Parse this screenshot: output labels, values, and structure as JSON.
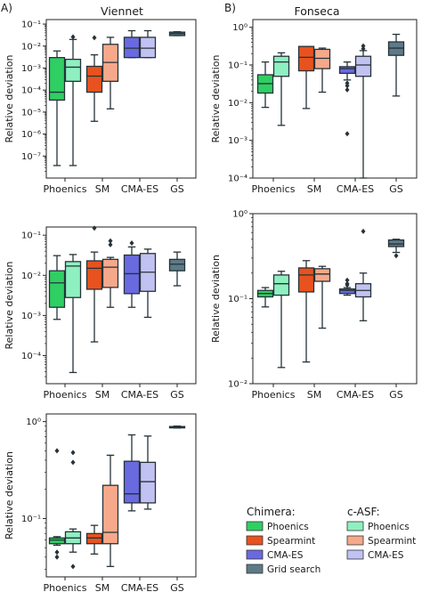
{
  "figure": {
    "panel_labels": [
      "A)",
      "B)"
    ],
    "column_titles": [
      "Viennet",
      "Fonseca"
    ],
    "ylabel": "Relative deviation",
    "categories": [
      "Phoenics",
      "SM",
      "CMA-ES",
      "GS"
    ]
  },
  "legend": {
    "chimera_title": "Chimera:",
    "casf_title": "c-ASF:",
    "chimera": [
      {
        "label": "Phoenics",
        "color": "#2fcf63"
      },
      {
        "label": "Spearmint",
        "color": "#e8521e"
      },
      {
        "label": "CMA-ES",
        "color": "#6a6ae0"
      },
      {
        "label": "Grid search",
        "color": "#5d7a87"
      }
    ],
    "casf": [
      {
        "label": "Phoenics",
        "color": "#8ef0c0"
      },
      {
        "label": "Spearmint",
        "color": "#f6a98a"
      },
      {
        "label": "CMA-ES",
        "color": "#c2c2f2"
      }
    ]
  },
  "chart_data": [
    {
      "type": "box",
      "panel": "A",
      "title": "Viennet",
      "ylabel": "Relative deviation",
      "yscale": "log",
      "ylim": [
        1e-08,
        0.16
      ],
      "yticks": [
        1e-07,
        1e-06,
        1e-05,
        0.0001,
        0.001,
        0.01,
        0.1
      ],
      "ytick_labels": [
        "10⁻⁷",
        "10⁻⁶",
        "10⁻⁵",
        "10⁻⁴",
        "10⁻³",
        "10⁻²",
        "10⁻¹"
      ],
      "categories": [
        "Phoenics",
        "SM",
        "CMA-ES",
        "GS"
      ],
      "boxes": [
        {
          "category": "Phoenics",
          "method": "Chimera",
          "color": "#2fcf63",
          "whislo": 3.7e-08,
          "q1": 3.5e-05,
          "med": 8e-05,
          "q3": 0.003,
          "whishi": 0.006,
          "fliers": []
        },
        {
          "category": "Phoenics",
          "method": "c-ASF",
          "color": "#8ef0c0",
          "whislo": 3.7e-08,
          "q1": 0.00025,
          "med": 0.0011,
          "q3": 0.0025,
          "whishi": 0.02,
          "fliers": [
            0.026
          ]
        },
        {
          "category": "SM",
          "method": "Chimera",
          "color": "#e8521e",
          "whislo": 3.8e-06,
          "q1": 8e-05,
          "med": 0.00043,
          "q3": 0.0012,
          "whishi": 0.004,
          "fliers": [
            0.024
          ]
        },
        {
          "category": "SM",
          "method": "c-ASF",
          "color": "#f6a98a",
          "whislo": 1.4e-05,
          "q1": 0.00025,
          "med": 0.0018,
          "q3": 0.012,
          "whishi": 0.025,
          "fliers": []
        },
        {
          "category": "CMA-ES",
          "method": "Chimera",
          "color": "#6a6ae0",
          "whislo": 0.003,
          "q1": 0.003,
          "med": 0.008,
          "q3": 0.025,
          "whishi": 0.05,
          "fliers": []
        },
        {
          "category": "CMA-ES",
          "method": "c-ASF",
          "color": "#c2c2f2",
          "whislo": 0.003,
          "q1": 0.003,
          "med": 0.008,
          "q3": 0.025,
          "whishi": 0.05,
          "fliers": []
        },
        {
          "category": "GS",
          "method": "Chimera",
          "color": "#5d7a87",
          "whislo": 0.03,
          "q1": 0.03,
          "med": 0.037,
          "q3": 0.043,
          "whishi": 0.045,
          "fliers": []
        }
      ]
    },
    {
      "type": "box",
      "panel": "B",
      "title": "Fonseca",
      "ylabel": "Relative deviation",
      "yscale": "log",
      "ylim": [
        0.0001,
        1.6
      ],
      "yticks": [
        0.0001,
        0.001,
        0.01,
        0.1,
        1
      ],
      "ytick_labels": [
        "10⁻⁴",
        "10⁻³",
        "10⁻²",
        "10⁻¹",
        "10⁰"
      ],
      "categories": [
        "Phoenics",
        "SM",
        "CMA-ES",
        "GS"
      ],
      "boxes": [
        {
          "category": "Phoenics",
          "method": "Chimera",
          "color": "#2fcf63",
          "whislo": 0.0075,
          "q1": 0.018,
          "med": 0.032,
          "q3": 0.055,
          "whishi": 0.12,
          "fliers": []
        },
        {
          "category": "Phoenics",
          "method": "c-ASF",
          "color": "#8ef0c0",
          "whislo": 0.0025,
          "q1": 0.05,
          "med": 0.12,
          "q3": 0.17,
          "whishi": 0.21,
          "fliers": []
        },
        {
          "category": "SM",
          "method": "Chimera",
          "color": "#e8521e",
          "whislo": 0.007,
          "q1": 0.07,
          "med": 0.16,
          "q3": 0.31,
          "whishi": 0.31,
          "fliers": []
        },
        {
          "category": "SM",
          "method": "c-ASF",
          "color": "#f6a98a",
          "whislo": 0.019,
          "q1": 0.08,
          "med": 0.15,
          "q3": 0.26,
          "whishi": 0.28,
          "fliers": []
        },
        {
          "category": "CMA-ES",
          "method": "Chimera",
          "color": "#6a6ae0",
          "whislo": 0.04,
          "q1": 0.06,
          "med": 0.08,
          "q3": 0.09,
          "whishi": 0.12,
          "fliers": [
            0.033,
            0.028,
            0.022,
            0.0015
          ]
        },
        {
          "category": "CMA-ES",
          "method": "c-ASF",
          "color": "#c2c2f2",
          "whislo": 0.0001,
          "q1": 0.05,
          "med": 0.1,
          "q3": 0.17,
          "whishi": 0.24,
          "fliers": [
            0.32,
            0.27
          ]
        },
        {
          "category": "GS",
          "method": "Chimera",
          "color": "#5d7a87",
          "whislo": 0.015,
          "q1": 0.18,
          "med": 0.28,
          "q3": 0.41,
          "whishi": 0.65,
          "fliers": []
        }
      ]
    },
    {
      "type": "box",
      "panel": "A",
      "ylabel": "Relative deviation",
      "yscale": "log",
      "ylim": [
        2e-05,
        0.16
      ],
      "yticks": [
        0.0001,
        0.001,
        0.01,
        0.1
      ],
      "ytick_labels": [
        "10⁻⁴",
        "10⁻³",
        "10⁻²",
        "10⁻¹"
      ],
      "categories": [
        "Phoenics",
        "SM",
        "CMA-ES",
        "GS"
      ],
      "boxes": [
        {
          "category": "Phoenics",
          "method": "Chimera",
          "color": "#2fcf63",
          "whislo": 0.0008,
          "q1": 0.0016,
          "med": 0.0065,
          "q3": 0.013,
          "whishi": 0.031,
          "fliers": []
        },
        {
          "category": "Phoenics",
          "method": "c-ASF",
          "color": "#8ef0c0",
          "whislo": 3.8e-05,
          "q1": 0.0028,
          "med": 0.017,
          "q3": 0.022,
          "whishi": 0.033,
          "fliers": []
        },
        {
          "category": "SM",
          "method": "Chimera",
          "color": "#e8521e",
          "whislo": 0.00022,
          "q1": 0.0045,
          "med": 0.015,
          "q3": 0.023,
          "whishi": 0.038,
          "fliers": [
            0.15
          ]
        },
        {
          "category": "SM",
          "method": "c-ASF",
          "color": "#f6a98a",
          "whislo": 0.0016,
          "q1": 0.005,
          "med": 0.016,
          "q3": 0.025,
          "whishi": 0.028,
          "fliers": [
            0.072,
            0.058
          ]
        },
        {
          "category": "CMA-ES",
          "method": "Chimera",
          "color": "#6a6ae0",
          "whislo": 0.0016,
          "q1": 0.0035,
          "med": 0.011,
          "q3": 0.032,
          "whishi": 0.051,
          "fliers": [
            0.064
          ]
        },
        {
          "category": "CMA-ES",
          "method": "c-ASF",
          "color": "#c2c2f2",
          "whislo": 0.0009,
          "q1": 0.004,
          "med": 0.012,
          "q3": 0.035,
          "whishi": 0.045,
          "fliers": []
        },
        {
          "category": "GS",
          "method": "Chimera",
          "color": "#5d7a87",
          "whislo": 0.0055,
          "q1": 0.013,
          "med": 0.019,
          "q3": 0.025,
          "whishi": 0.038,
          "fliers": []
        }
      ]
    },
    {
      "type": "box",
      "panel": "B",
      "ylabel": "Relative deviation",
      "yscale": "log",
      "ylim": [
        0.01,
        1.0
      ],
      "yticks": [
        0.01,
        0.1,
        1
      ],
      "ytick_labels": [
        "10⁻²",
        "10⁻¹",
        "10⁰"
      ],
      "categories": [
        "Phoenics",
        "SM",
        "CMA-ES",
        "GS"
      ],
      "boxes": [
        {
          "category": "Phoenics",
          "method": "Chimera",
          "color": "#2fcf63",
          "whislo": 0.08,
          "q1": 0.105,
          "med": 0.115,
          "q3": 0.125,
          "whishi": 0.135,
          "fliers": []
        },
        {
          "category": "Phoenics",
          "method": "c-ASF",
          "color": "#8ef0c0",
          "whislo": 0.0155,
          "q1": 0.11,
          "med": 0.15,
          "q3": 0.19,
          "whishi": 0.21,
          "fliers": []
        },
        {
          "category": "SM",
          "method": "Chimera",
          "color": "#e8521e",
          "whislo": 0.018,
          "q1": 0.12,
          "med": 0.19,
          "q3": 0.23,
          "whishi": 0.28,
          "fliers": []
        },
        {
          "category": "SM",
          "method": "c-ASF",
          "color": "#f6a98a",
          "whislo": 0.045,
          "q1": 0.16,
          "med": 0.195,
          "q3": 0.225,
          "whishi": 0.24,
          "fliers": []
        },
        {
          "category": "CMA-ES",
          "method": "Chimera",
          "color": "#6a6ae0",
          "whislo": 0.11,
          "q1": 0.115,
          "med": 0.125,
          "q3": 0.13,
          "whishi": 0.135,
          "fliers": [
            0.165,
            0.15,
            0.145
          ]
        },
        {
          "category": "CMA-ES",
          "method": "c-ASF",
          "color": "#c2c2f2",
          "whislo": 0.055,
          "q1": 0.105,
          "med": 0.125,
          "q3": 0.15,
          "whishi": 0.2,
          "fliers": [
            0.62
          ]
        },
        {
          "category": "GS",
          "method": "Chimera",
          "color": "#5d7a87",
          "whislo": 0.35,
          "q1": 0.41,
          "med": 0.44,
          "q3": 0.49,
          "whishi": 0.5,
          "fliers": [
            0.32
          ]
        }
      ]
    },
    {
      "type": "box",
      "panel": "A",
      "ylabel": "Relative deviation",
      "yscale": "log",
      "ylim": [
        0.025,
        1.2
      ],
      "yticks": [
        0.1,
        1
      ],
      "ytick_labels": [
        "10⁻¹",
        "10⁰"
      ],
      "categories": [
        "Phoenics",
        "SM",
        "CMA-ES",
        "GS"
      ],
      "boxes": [
        {
          "category": "Phoenics",
          "method": "Chimera",
          "color": "#2fcf63",
          "whislo": 0.053,
          "q1": 0.055,
          "med": 0.06,
          "q3": 0.063,
          "whishi": 0.065,
          "fliers": [
            0.5,
            0.045,
            0.04
          ]
        },
        {
          "category": "Phoenics",
          "method": "c-ASF",
          "color": "#8ef0c0",
          "whislo": 0.045,
          "q1": 0.055,
          "med": 0.063,
          "q3": 0.073,
          "whishi": 0.078,
          "fliers": [
            0.48,
            0.38,
            0.032
          ]
        },
        {
          "category": "SM",
          "method": "Chimera",
          "color": "#e8521e",
          "whislo": 0.043,
          "q1": 0.055,
          "med": 0.063,
          "q3": 0.07,
          "whishi": 0.085,
          "fliers": []
        },
        {
          "category": "SM",
          "method": "c-ASF",
          "color": "#f6a98a",
          "whislo": 0.032,
          "q1": 0.055,
          "med": 0.072,
          "q3": 0.22,
          "whishi": 0.45,
          "fliers": []
        },
        {
          "category": "CMA-ES",
          "method": "Chimera",
          "color": "#6a6ae0",
          "whislo": 0.12,
          "q1": 0.145,
          "med": 0.18,
          "q3": 0.39,
          "whishi": 0.73,
          "fliers": []
        },
        {
          "category": "CMA-ES",
          "method": "c-ASF",
          "color": "#c2c2f2",
          "whislo": 0.125,
          "q1": 0.145,
          "med": 0.24,
          "q3": 0.38,
          "whishi": 0.71,
          "fliers": []
        },
        {
          "category": "GS",
          "method": "Chimera",
          "color": "#5d7a87",
          "whislo": 0.86,
          "q1": 0.87,
          "med": 0.88,
          "q3": 0.89,
          "whishi": 0.9,
          "fliers": []
        }
      ]
    }
  ]
}
